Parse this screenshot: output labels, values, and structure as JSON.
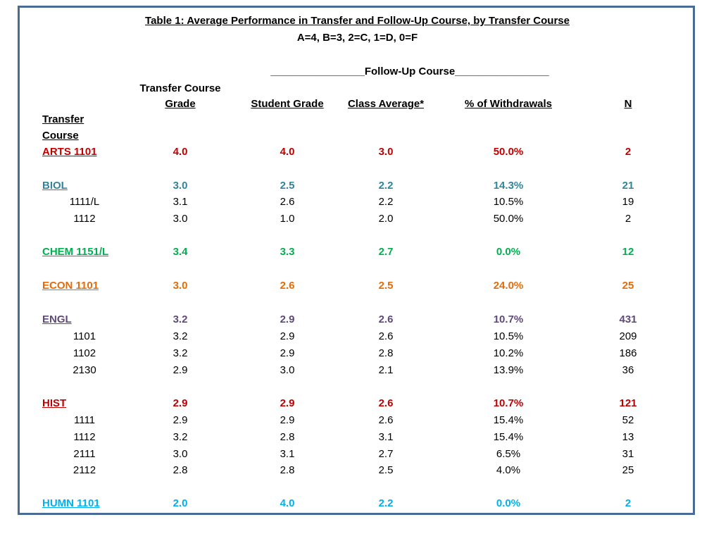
{
  "title": "Table 1: Average Performance in Transfer and Follow-Up Course, by Transfer Course",
  "scale": "A=4, B=3, 2=C, 1=D, 0=F",
  "follow_up_header": "________________Follow-Up Course________________",
  "headers": {
    "transfer_course_grade_1": "Transfer Course",
    "transfer_course_grade_2": "Grade",
    "student_grade": "Student Grade",
    "class_average": "Class Average*",
    "withdrawals": "% of Withdrawals",
    "n": "N",
    "transfer_course_1": "Transfer",
    "transfer_course_2": "Course"
  },
  "rows": [
    {
      "label": "ARTS 1101",
      "tcg": "4.0",
      "sg": "4.0",
      "ca": "3.0",
      "wd": "50.0%",
      "n": "2"
    },
    {
      "label": "BIOL",
      "tcg": "3.0",
      "sg": "2.5",
      "ca": "2.2",
      "wd": "14.3%",
      "n": "21"
    },
    {
      "label": "1111/L",
      "tcg": "3.1",
      "sg": "2.6",
      "ca": "2.2",
      "wd": "10.5%",
      "n": "19"
    },
    {
      "label": "1112",
      "tcg": "3.0",
      "sg": "1.0",
      "ca": "2.0",
      "wd": "50.0%",
      "n": "2"
    },
    {
      "label": "CHEM 1151/L",
      "tcg": "3.4",
      "sg": "3.3",
      "ca": "2.7",
      "wd": "0.0%",
      "n": "12"
    },
    {
      "label": "ECON 1101",
      "tcg": "3.0",
      "sg": "2.6",
      "ca": "2.5",
      "wd": "24.0%",
      "n": "25"
    },
    {
      "label": "ENGL",
      "tcg": "3.2",
      "sg": "2.9",
      "ca": "2.6",
      "wd": "10.7%",
      "n": "431"
    },
    {
      "label": "1101",
      "tcg": "3.2",
      "sg": "2.9",
      "ca": "2.6",
      "wd": "10.5%",
      "n": "209"
    },
    {
      "label": "1102",
      "tcg": "3.2",
      "sg": "2.9",
      "ca": "2.8",
      "wd": "10.2%",
      "n": "186"
    },
    {
      "label": "2130",
      "tcg": "2.9",
      "sg": "3.0",
      "ca": "2.1",
      "wd": "13.9%",
      "n": "36"
    },
    {
      "label": "HIST",
      "tcg": "2.9",
      "sg": "2.9",
      "ca": "2.6",
      "wd": "10.7%",
      "n": "121"
    },
    {
      "label": "1111",
      "tcg": "2.9",
      "sg": "2.9",
      "ca": "2.6",
      "wd": "15.4%",
      "n": "52"
    },
    {
      "label": "1112",
      "tcg": "3.2",
      "sg": "2.8",
      "ca": "3.1",
      "wd": "15.4%",
      "n": "13"
    },
    {
      "label": "2111",
      "tcg": "3.0",
      "sg": "3.1",
      "ca": "2.7",
      "wd": "6.5%",
      "n": "31"
    },
    {
      "label": "2112",
      "tcg": "2.8",
      "sg": "2.8",
      "ca": "2.5",
      "wd": "4.0%",
      "n": "25"
    },
    {
      "label": "HUMN 1101",
      "tcg": "2.0",
      "sg": "4.0",
      "ca": "2.2",
      "wd": "0.0%",
      "n": "2"
    }
  ],
  "colors": {
    "frame": "#4a6c94",
    "arts": "#c00000",
    "biol": "#31849b",
    "chem": "#00b050",
    "econ": "#e36c09",
    "engl": "#5f497a",
    "hist": "#c00000",
    "humn": "#00b0f0"
  }
}
